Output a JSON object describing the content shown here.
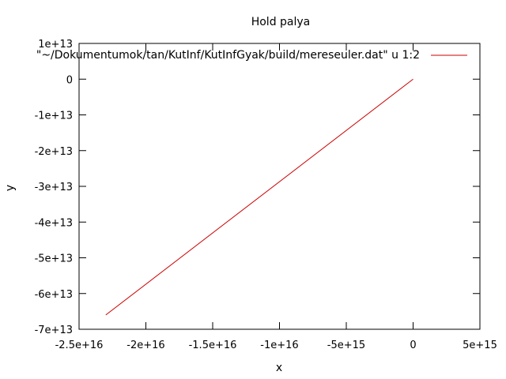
{
  "chart_data": {
    "type": "line",
    "title": "Hold palya",
    "xlabel": "x",
    "ylabel": "y",
    "xlim": [
      -2.5e+16,
      5000000000000000.0
    ],
    "ylim": [
      -70000000000000.0,
      10000000000000.0
    ],
    "x_ticks": [
      -2.5e+16,
      -2e+16,
      -1.5e+16,
      -1e+16,
      -5000000000000000.0,
      0,
      5000000000000000.0
    ],
    "x_tick_labels": [
      "-2.5e+16",
      "-2e+16",
      "-1.5e+16",
      "-1e+16",
      "-5e+15",
      "0",
      "5e+15"
    ],
    "y_ticks": [
      10000000000000.0,
      0,
      -10000000000000.0,
      -20000000000000.0,
      -30000000000000.0,
      -40000000000000.0,
      -50000000000000.0,
      -60000000000000.0,
      -70000000000000.0
    ],
    "y_tick_labels": [
      "1e+13",
      "0",
      "-1e+13",
      "-2e+13",
      "-3e+13",
      "-4e+13",
      "-5e+13",
      "-6e+13",
      "-7e+13"
    ],
    "legend_position": "top-right",
    "grid": false,
    "series": [
      {
        "name": "\"~/Dokumentumok/tan/KutInf/KutInfGyak/build/mereseuler.dat\" u 1:2",
        "color": "#cc0000",
        "x": [
          -2.3e+16,
          0
        ],
        "y": [
          -66000000000000.0,
          0
        ]
      }
    ]
  }
}
